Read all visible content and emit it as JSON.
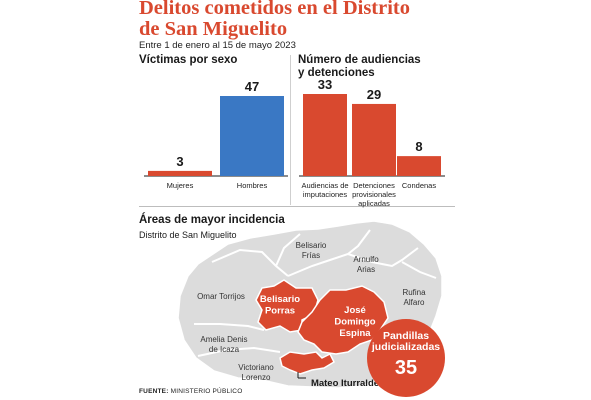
{
  "header": {
    "title_line1": "Delitos cometidos en el Distrito",
    "title_line2": "de San Miguelito",
    "subtitle": "Entre 1 de enero al 15 de mayo 2023"
  },
  "colors": {
    "red": "#d9492f",
    "blue": "#3a78c4",
    "map_gray": "#dcdcdc",
    "map_border": "#ffffff"
  },
  "chart_data": [
    {
      "type": "bar",
      "title": "Víctimas por sexo",
      "categories": [
        "Mujeres",
        "Hombres"
      ],
      "values": [
        3,
        47
      ],
      "bar_colors": [
        "#d9492f",
        "#3a78c4"
      ]
    },
    {
      "type": "bar",
      "title_lines": [
        "Número de audiencias",
        "y detenciones"
      ],
      "categories": [
        [
          "Audiencias de",
          "imputaciones"
        ],
        [
          "Detenciones",
          "provisionales",
          "aplicadas"
        ],
        [
          "Condenas"
        ]
      ],
      "values": [
        33,
        29,
        8
      ],
      "bar_colors": [
        "#d9492f",
        "#d9492f",
        "#d9492f"
      ]
    }
  ],
  "map": {
    "title": "Áreas de mayor incidencia",
    "subtitle": "Distrito de San Miguelito",
    "areas": [
      {
        "id": "omar-torrijos",
        "label": [
          "Omar Torrijos"
        ],
        "highlighted": false
      },
      {
        "id": "belisario-frias",
        "label": [
          "Belisario",
          "Frías"
        ],
        "highlighted": false
      },
      {
        "id": "arnulfo-arias",
        "label": [
          "Arnulfo",
          "Arias"
        ],
        "highlighted": false
      },
      {
        "id": "rufina-alfaro",
        "label": [
          "Rufina",
          "Alfaro"
        ],
        "highlighted": false
      },
      {
        "id": "amelia-denis-de-icaza",
        "label": [
          "Amelia Denis",
          "de Icaza"
        ],
        "highlighted": false
      },
      {
        "id": "victoriano-lorenzo",
        "label": [
          "Victoriano",
          "Lorenzo"
        ],
        "highlighted": false
      },
      {
        "id": "belisario-porras",
        "label": [
          "Belisario",
          "Porras"
        ],
        "highlighted": true
      },
      {
        "id": "jose-domingo-espina",
        "label": [
          "José",
          "Domingo",
          "Espina"
        ],
        "highlighted": true
      },
      {
        "id": "mateo-iturralde",
        "label": [
          "Mateo Iturralde"
        ],
        "highlighted": true
      }
    ],
    "callout": {
      "label_lines": [
        "Pandillas",
        "judicializadas"
      ],
      "value": "35"
    }
  },
  "source": {
    "label": "FUENTE:",
    "value": "MINISTERIO PÚBLICO"
  }
}
